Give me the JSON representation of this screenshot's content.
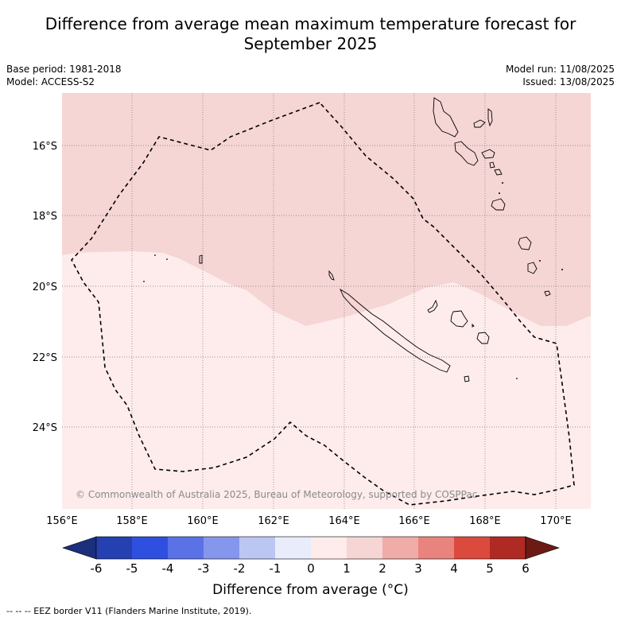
{
  "header": {
    "title_line1": "Difference from average mean maximum temperature forecast for",
    "title_line2": "September 2025",
    "base_period": "Base period: 1981-2018",
    "model": "Model: ACCESS-S2",
    "model_run": "Model run: 11/08/2025",
    "issued": "Issued: 13/08/2025"
  },
  "map": {
    "lon_ticks": [
      "156°E",
      "158°E",
      "160°E",
      "162°E",
      "164°E",
      "166°E",
      "168°E",
      "170°E"
    ],
    "lat_ticks": [
      "16°S",
      "18°S",
      "20°S",
      "22°S",
      "24°S"
    ],
    "copyright": "© Commonwealth of Australia 2025, Bureau of Meteorology, supported by COSPPac",
    "fill_colors": {
      "zero_to_one": "#fdeceb",
      "one_to_two": "#f6d5d5"
    }
  },
  "colorbar": {
    "tick_labels": [
      "-6",
      "-5",
      "-4",
      "-3",
      "-2",
      "-1",
      "0",
      "1",
      "2",
      "3",
      "4",
      "5",
      "6"
    ],
    "colors": [
      "#1c2f7c",
      "#2540b0",
      "#2f4fe0",
      "#5a72e6",
      "#8597ec",
      "#bcc6f3",
      "#e8ecfb",
      "#fdeceb",
      "#f6d5d5",
      "#efaca9",
      "#e8847d",
      "#dc4a3e",
      "#ae2a22",
      "#6e1a14"
    ],
    "label": "Difference from average (°C)"
  },
  "footnote": "--  --  -- EEZ border V11 (Flanders Marine Institute, 2019)."
}
